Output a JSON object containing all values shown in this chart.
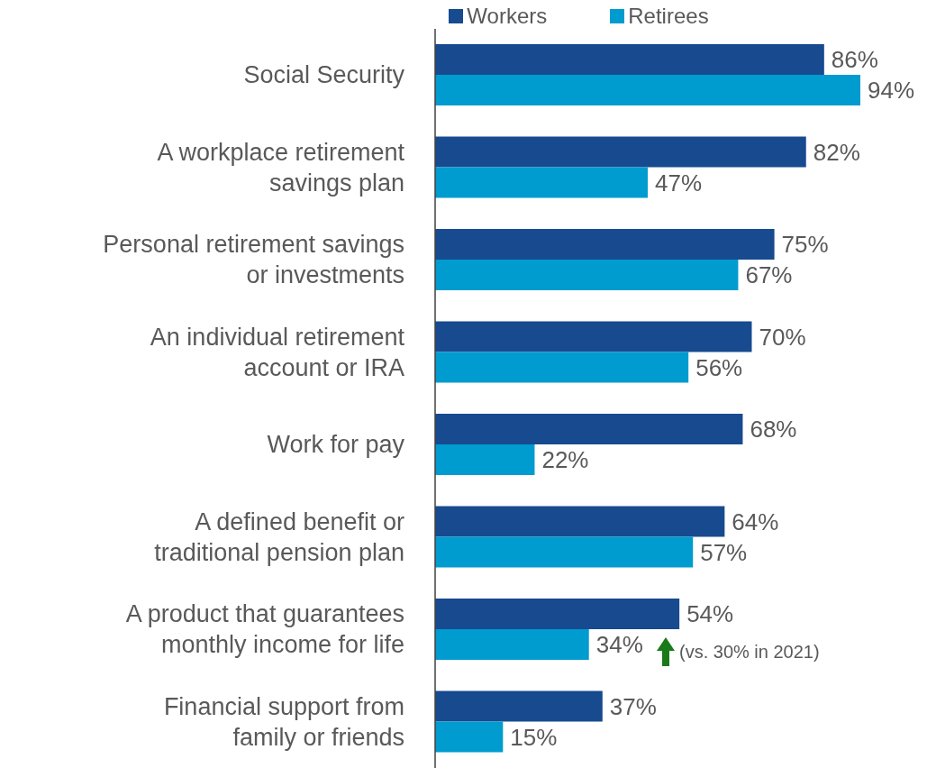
{
  "chart_data": {
    "type": "bar",
    "orientation": "horizontal",
    "categories": [
      "Social Security",
      "A workplace retirement savings plan",
      "Personal retirement savings or investments",
      "An individual retirement account or IRA",
      "Work for pay",
      "A defined benefit or traditional pension plan",
      "A product that guarantees monthly income for life",
      "Financial support from family or friends"
    ],
    "series": [
      {
        "name": "Workers",
        "color": "#174a8f",
        "values": [
          86,
          82,
          75,
          70,
          68,
          64,
          54,
          37
        ],
        "value_labels": [
          "86%",
          "82%",
          "75%",
          "70%",
          "68%",
          "64%",
          "54%",
          "37%"
        ]
      },
      {
        "name": "Retirees",
        "color": "#009bcf",
        "values": [
          94,
          47,
          67,
          56,
          22,
          57,
          34,
          15
        ],
        "value_labels": [
          "94%",
          "47%",
          "67%",
          "56%",
          "22%",
          "57%",
          "34%",
          "15%"
        ]
      }
    ],
    "annotations": [
      "(vs. 30% in 2021)"
    ],
    "legend": "top"
  }
}
